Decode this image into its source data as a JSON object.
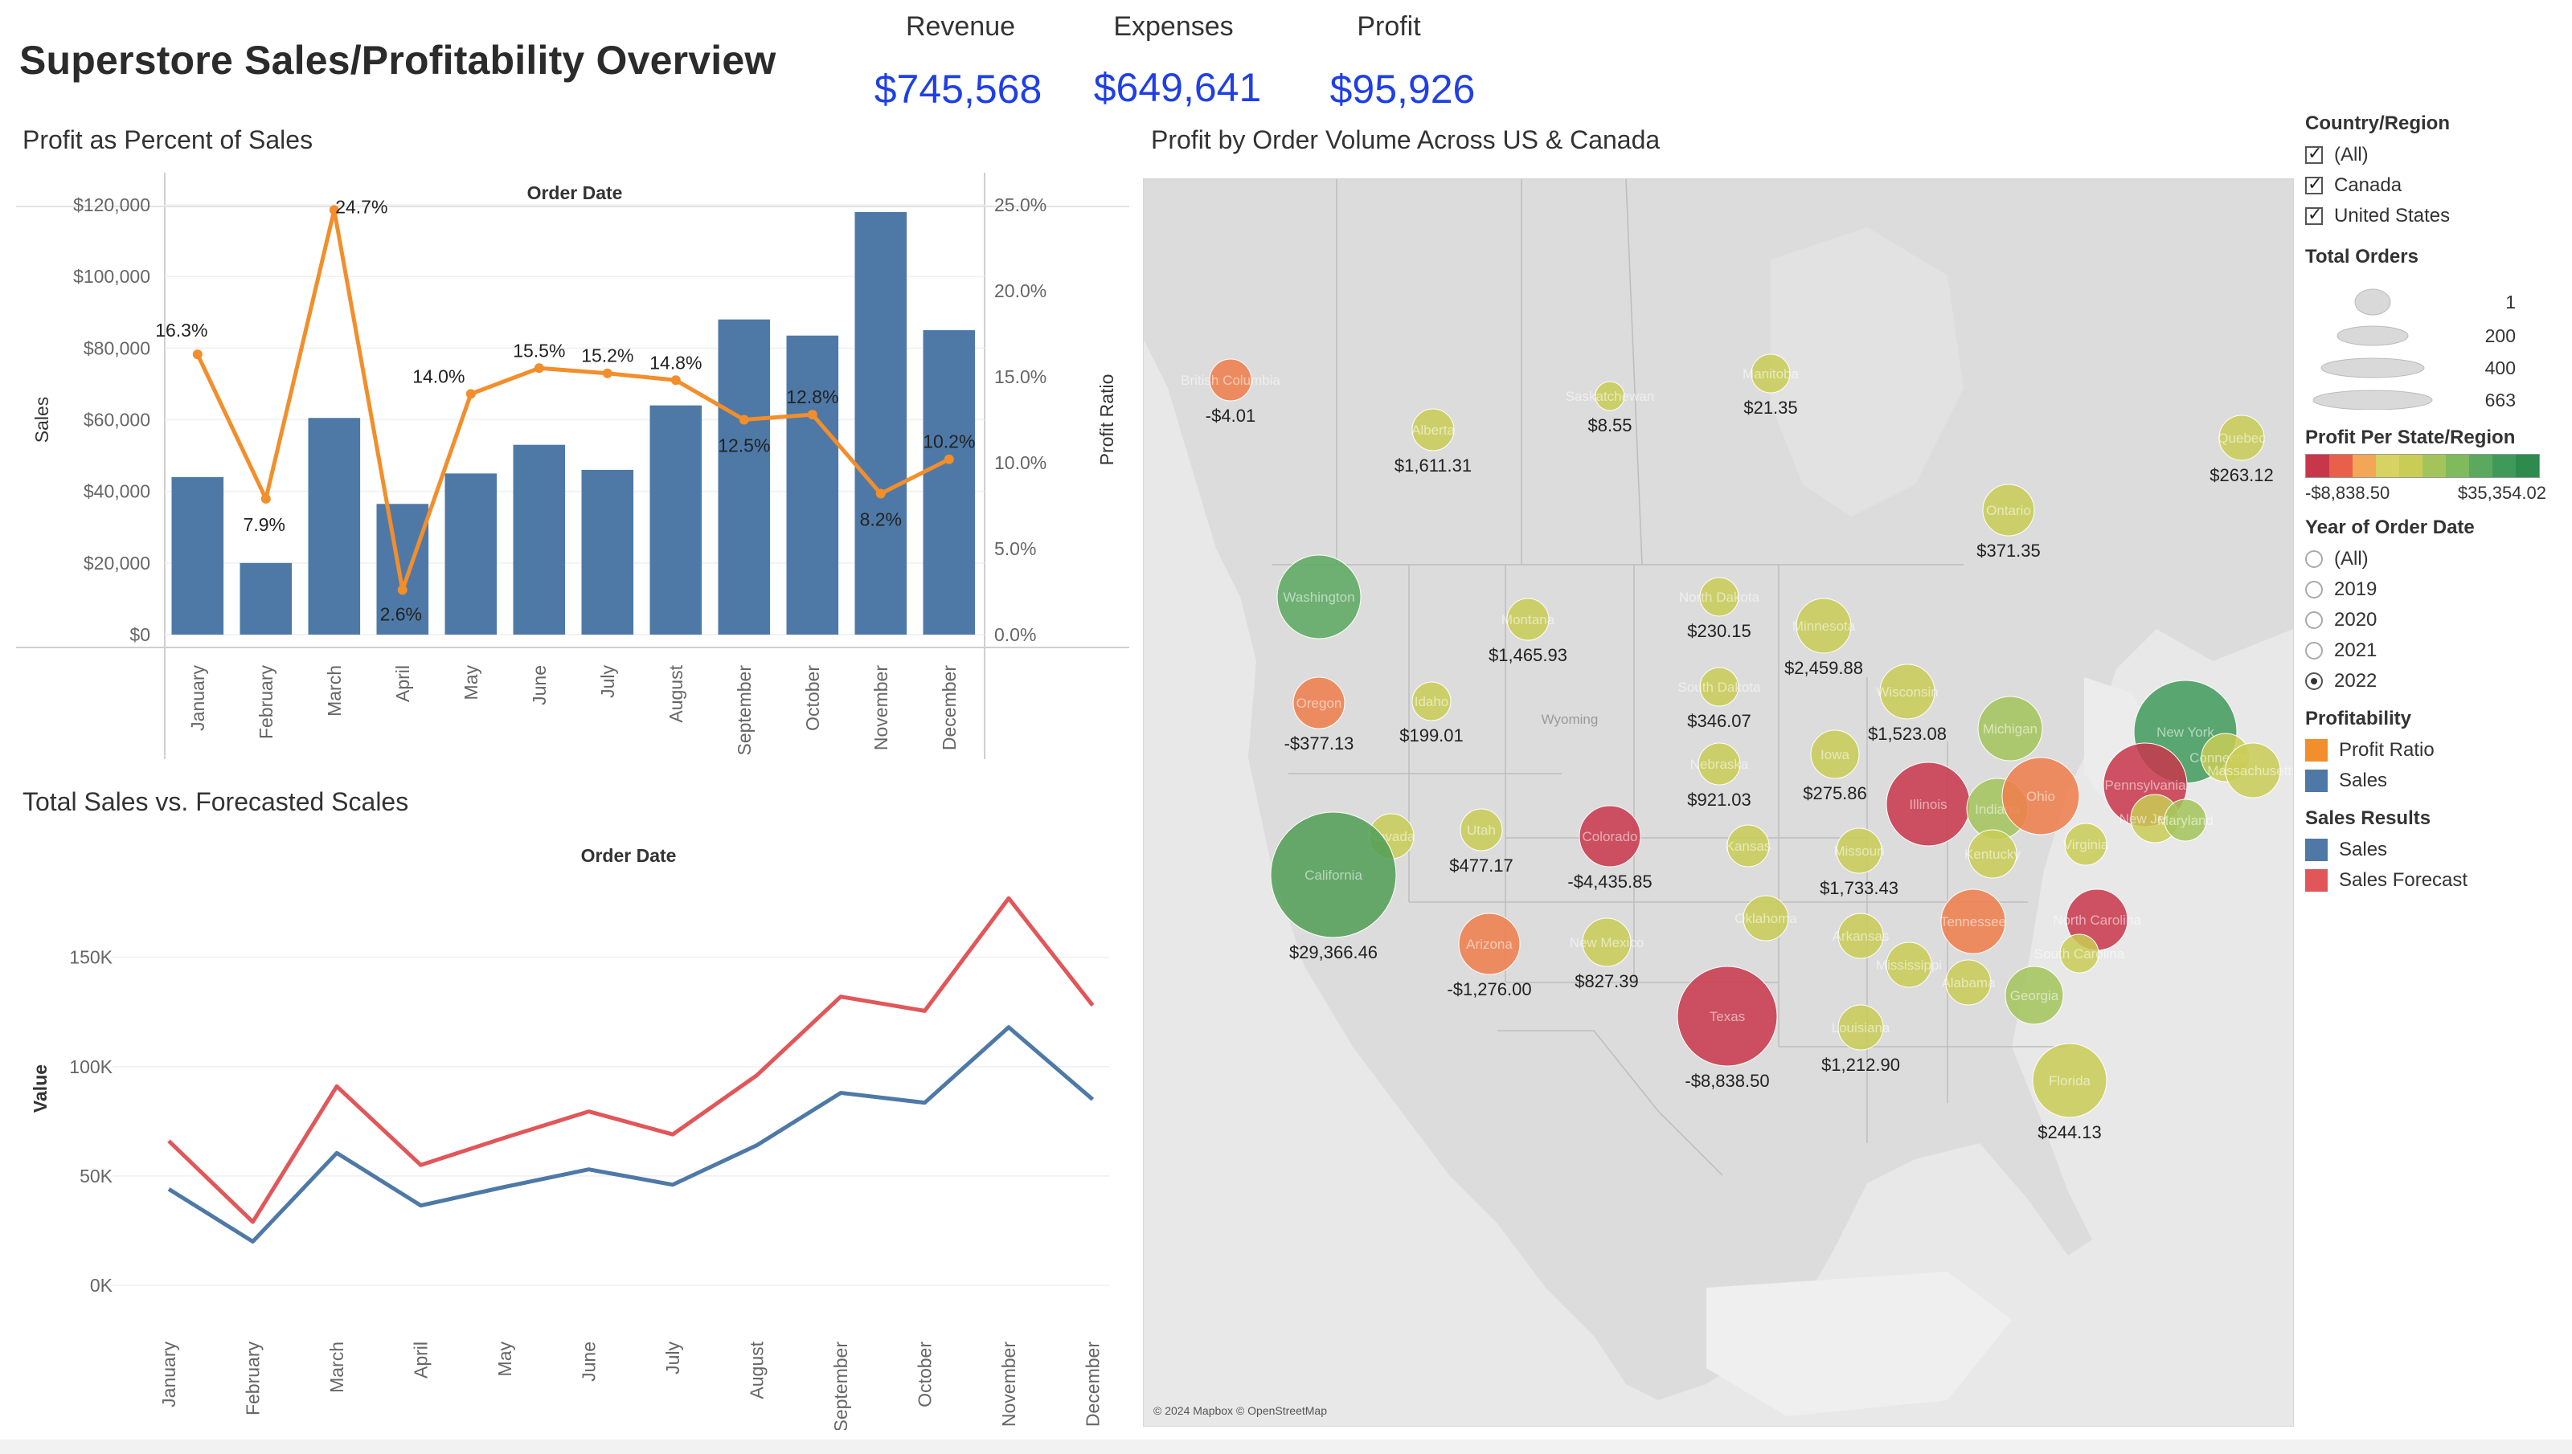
{
  "dashboard": {
    "title": "Superstore Sales/Profitability Overview"
  },
  "kpis": [
    {
      "label": "Revenue",
      "value": "$745,568"
    },
    {
      "label": "Expenses",
      "value": "$649,641"
    },
    {
      "label": "Profit",
      "value": "$95,926"
    }
  ],
  "panels": {
    "profit_pct": "Profit as Percent of Sales",
    "sales_forecast": "Total Sales vs. Forecasted Scales",
    "map": "Profit by Order Volume Across US & Canada"
  },
  "chart_data": [
    {
      "type": "bar",
      "subtype": "bar-line combo, dual axis",
      "title": "Profit as Percent of Sales",
      "header": "Order Date",
      "categories": [
        "January",
        "February",
        "March",
        "April",
        "May",
        "June",
        "July",
        "August",
        "September",
        "October",
        "November",
        "December"
      ],
      "series": [
        {
          "name": "Sales",
          "axis": "left",
          "values": [
            44000,
            20000,
            60500,
            36500,
            45000,
            53000,
            46000,
            64000,
            88000,
            83500,
            118000,
            85000
          ],
          "color": "#4e79a7"
        },
        {
          "name": "Profit Ratio",
          "axis": "right",
          "type": "line",
          "values": [
            16.3,
            7.9,
            24.7,
            2.6,
            14.0,
            15.5,
            15.2,
            14.8,
            12.5,
            12.8,
            8.2,
            10.2
          ],
          "labels": [
            "16.3%",
            "7.9%",
            "24.7%",
            "2.6%",
            "14.0%",
            "15.5%",
            "15.2%",
            "14.8%",
            "12.5%",
            "12.8%",
            "8.2%",
            "10.2%"
          ],
          "color": "#f28e2b"
        }
      ],
      "ylabel": "Sales",
      "ylabel_right": "Profit Ratio",
      "ylim": [
        0,
        120000
      ],
      "ylim_right": [
        0,
        25
      ],
      "yticks": [
        "$0",
        "$20,000",
        "$40,000",
        "$60,000",
        "$80,000",
        "$100,000",
        "$120,000"
      ],
      "yticks_right": [
        "0.0%",
        "5.0%",
        "10.0%",
        "15.0%",
        "20.0%",
        "25.0%"
      ],
      "grid": true
    },
    {
      "type": "line",
      "title": "Total Sales vs. Forecasted Scales",
      "header": "Order Date",
      "categories": [
        "January",
        "February",
        "March",
        "April",
        "May",
        "June",
        "July",
        "August",
        "September",
        "October",
        "November",
        "December"
      ],
      "series": [
        {
          "name": "Sales Forecast",
          "values": [
            66000,
            29000,
            91000,
            55000,
            67500,
            79500,
            69000,
            96000,
            132000,
            125500,
            177000,
            128000
          ],
          "color": "#e15759"
        },
        {
          "name": "Sales",
          "values": [
            44000,
            20000,
            60500,
            36500,
            45000,
            53000,
            46000,
            64000,
            88000,
            83500,
            118000,
            85000
          ],
          "color": "#4e79a7"
        }
      ],
      "ylabel": "Value",
      "ylim": [
        0,
        180000
      ],
      "yticks": [
        "0K",
        "50K",
        "100K",
        "150K"
      ],
      "grid": true
    }
  ],
  "map": {
    "attribution": "© 2024 Mapbox © OpenStreetMap",
    "regions": [
      {
        "name": "British Columbia",
        "value": "-$4.01",
        "color": "#f07c4a"
      },
      {
        "name": "Alberta",
        "value": "$1,611.31",
        "color": "#c9cc55"
      },
      {
        "name": "Saskatchewan",
        "value": "$8.55",
        "color": "#c9cc55"
      },
      {
        "name": "Manitoba",
        "value": "$21.35",
        "color": "#c9cc55"
      },
      {
        "name": "Quebec",
        "value": "$263.12",
        "color": "#c9cc55"
      },
      {
        "name": "Ontario",
        "value": "$371.35",
        "color": "#c9cc55"
      },
      {
        "name": "Washington",
        "value": "",
        "color": "#5ba85f"
      },
      {
        "name": "Oregon",
        "value": "-$377.13",
        "color": "#f07c4a"
      },
      {
        "name": "Idaho",
        "value": "$199.01",
        "color": "#c9cc55"
      },
      {
        "name": "Montana",
        "value": "$1,465.93",
        "color": "#c9cc55"
      },
      {
        "name": "Wyoming",
        "value": "",
        "color": ""
      },
      {
        "name": "North Dakota",
        "value": "$230.15",
        "color": "#c9cc55"
      },
      {
        "name": "South Dakota",
        "value": "$346.07",
        "color": "#c9cc55"
      },
      {
        "name": "Nebraska",
        "value": "$921.03",
        "color": "#c9cc55"
      },
      {
        "name": "Minnesota",
        "value": "$2,459.88",
        "color": "#c9cc55"
      },
      {
        "name": "Wisconsin",
        "value": "$1,523.08",
        "color": "#c9cc55"
      },
      {
        "name": "Iowa",
        "value": "$275.86",
        "color": "#c9cc55"
      },
      {
        "name": "Michigan",
        "value": "",
        "color": "#a3c45a"
      },
      {
        "name": "Illinois",
        "value": "",
        "color": "#c8364a"
      },
      {
        "name": "Indiana",
        "value": "",
        "color": "#a3c45a"
      },
      {
        "name": "Ohio",
        "value": "",
        "color": "#f07c4a"
      },
      {
        "name": "New York",
        "value": "",
        "color": "#3f9a5a"
      },
      {
        "name": "Pennsylvania",
        "value": "",
        "color": "#c8364a"
      },
      {
        "name": "Nevada",
        "value": "",
        "color": "#c9cc55"
      },
      {
        "name": "Utah",
        "value": "$477.17",
        "color": "#c9cc55"
      },
      {
        "name": "Colorado",
        "value": "-$4,435.85",
        "color": "#c8364a"
      },
      {
        "name": "Kansas",
        "value": "",
        "color": "#c9cc55"
      },
      {
        "name": "Missouri",
        "value": "$1,733.43",
        "color": "#c9cc55"
      },
      {
        "name": "Kentucky",
        "value": "",
        "color": "#c9cc55"
      },
      {
        "name": "Virginia",
        "value": "",
        "color": "#c9cc55"
      },
      {
        "name": "California",
        "value": "$29,366.46",
        "color": "#4f9d55"
      },
      {
        "name": "Arizona",
        "value": "-$1,276.00",
        "color": "#f07c4a"
      },
      {
        "name": "New Mexico",
        "value": "$827.39",
        "color": "#c9cc55"
      },
      {
        "name": "Oklahoma",
        "value": "",
        "color": "#c9cc55"
      },
      {
        "name": "Arkansas",
        "value": "",
        "color": "#c9cc55"
      },
      {
        "name": "Tennessee",
        "value": "",
        "color": "#f07c4a"
      },
      {
        "name": "North Carolina",
        "value": "",
        "color": "#c8364a"
      },
      {
        "name": "Mississippi",
        "value": "",
        "color": "#c9cc55"
      },
      {
        "name": "Alabama",
        "value": "",
        "color": "#c9cc55"
      },
      {
        "name": "Georgia",
        "value": "",
        "color": "#a3c45a"
      },
      {
        "name": "South Carolina",
        "value": "",
        "color": "#c9cc55"
      },
      {
        "name": "Texas",
        "value": "-$8,838.50",
        "color": "#c8364a"
      },
      {
        "name": "Louisiana",
        "value": "$1,212.90",
        "color": "#c9cc55"
      },
      {
        "name": "Florida",
        "value": "$244.13",
        "color": "#c9cc55"
      },
      {
        "name": "New Jersey",
        "value": "",
        "color": "#c9cc55"
      },
      {
        "name": "Maryland",
        "value": "",
        "color": "#a3c45a"
      },
      {
        "name": "Connecticut",
        "value": "",
        "color": "#c9cc55"
      },
      {
        "name": "Massachusetts",
        "value": "",
        "color": "#c9cc55"
      }
    ]
  },
  "filters": {
    "country": {
      "title": "Country/Region",
      "options": [
        "(All)",
        "Canada",
        "United States"
      ]
    },
    "total_orders": {
      "title": "Total Orders",
      "values": [
        "1",
        "200",
        "400",
        "663"
      ]
    },
    "profit_per_state": {
      "title": "Profit Per State/Region",
      "min": "-$8,838.50",
      "max": "$35,354.02",
      "colors": [
        "#c8364a",
        "#f07c4a",
        "#c9cc55",
        "#a3c45a",
        "#5ba85f",
        "#2e8b4e"
      ]
    },
    "year": {
      "title": "Year of Order Date",
      "options": [
        "(All)",
        "2019",
        "2020",
        "2021",
        "2022"
      ],
      "selected": "2022"
    },
    "profitability": {
      "title": "Profitability",
      "items": [
        {
          "label": "Profit Ratio",
          "color": "#f28e2b"
        },
        {
          "label": "Sales",
          "color": "#4e79a7"
        }
      ]
    },
    "sales_results": {
      "title": "Sales Results",
      "items": [
        {
          "label": "Sales",
          "color": "#4e79a7"
        },
        {
          "label": "Sales Forecast",
          "color": "#e15759"
        }
      ]
    }
  }
}
